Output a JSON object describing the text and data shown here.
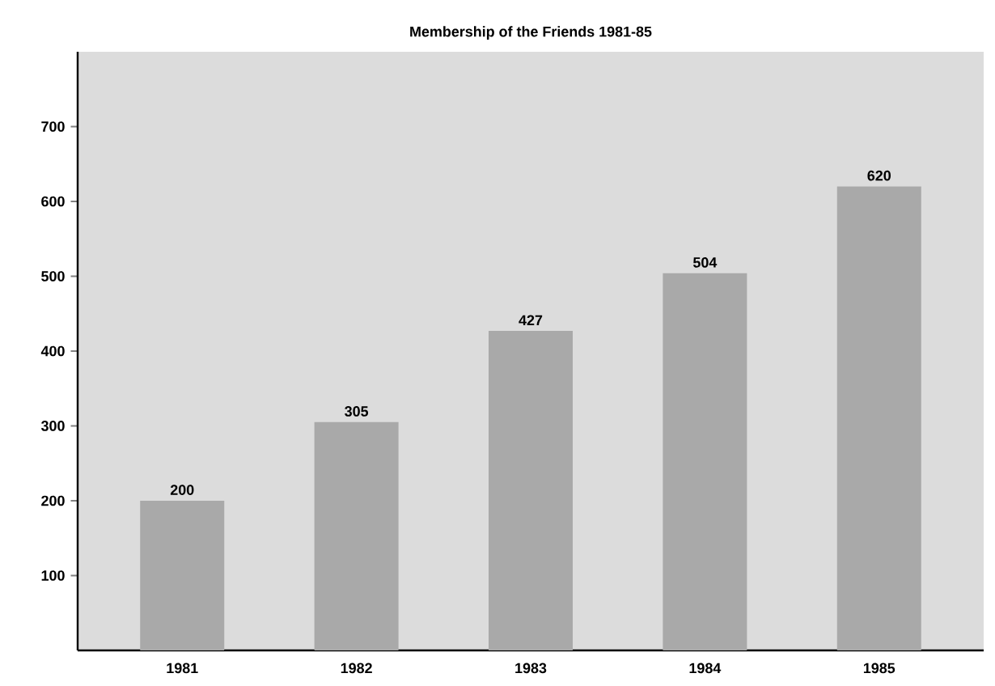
{
  "chart_data": {
    "type": "bar",
    "title": "Membership of the Friends 1981-85",
    "categories": [
      "1981",
      "1982",
      "1983",
      "1984",
      "1985"
    ],
    "values": [
      200,
      305,
      427,
      504,
      620
    ],
    "color": "#a9a9a9",
    "ylim": [
      0,
      800
    ],
    "yticks": [
      100,
      200,
      300,
      400,
      500,
      600,
      700
    ],
    "data_labels": true
  }
}
